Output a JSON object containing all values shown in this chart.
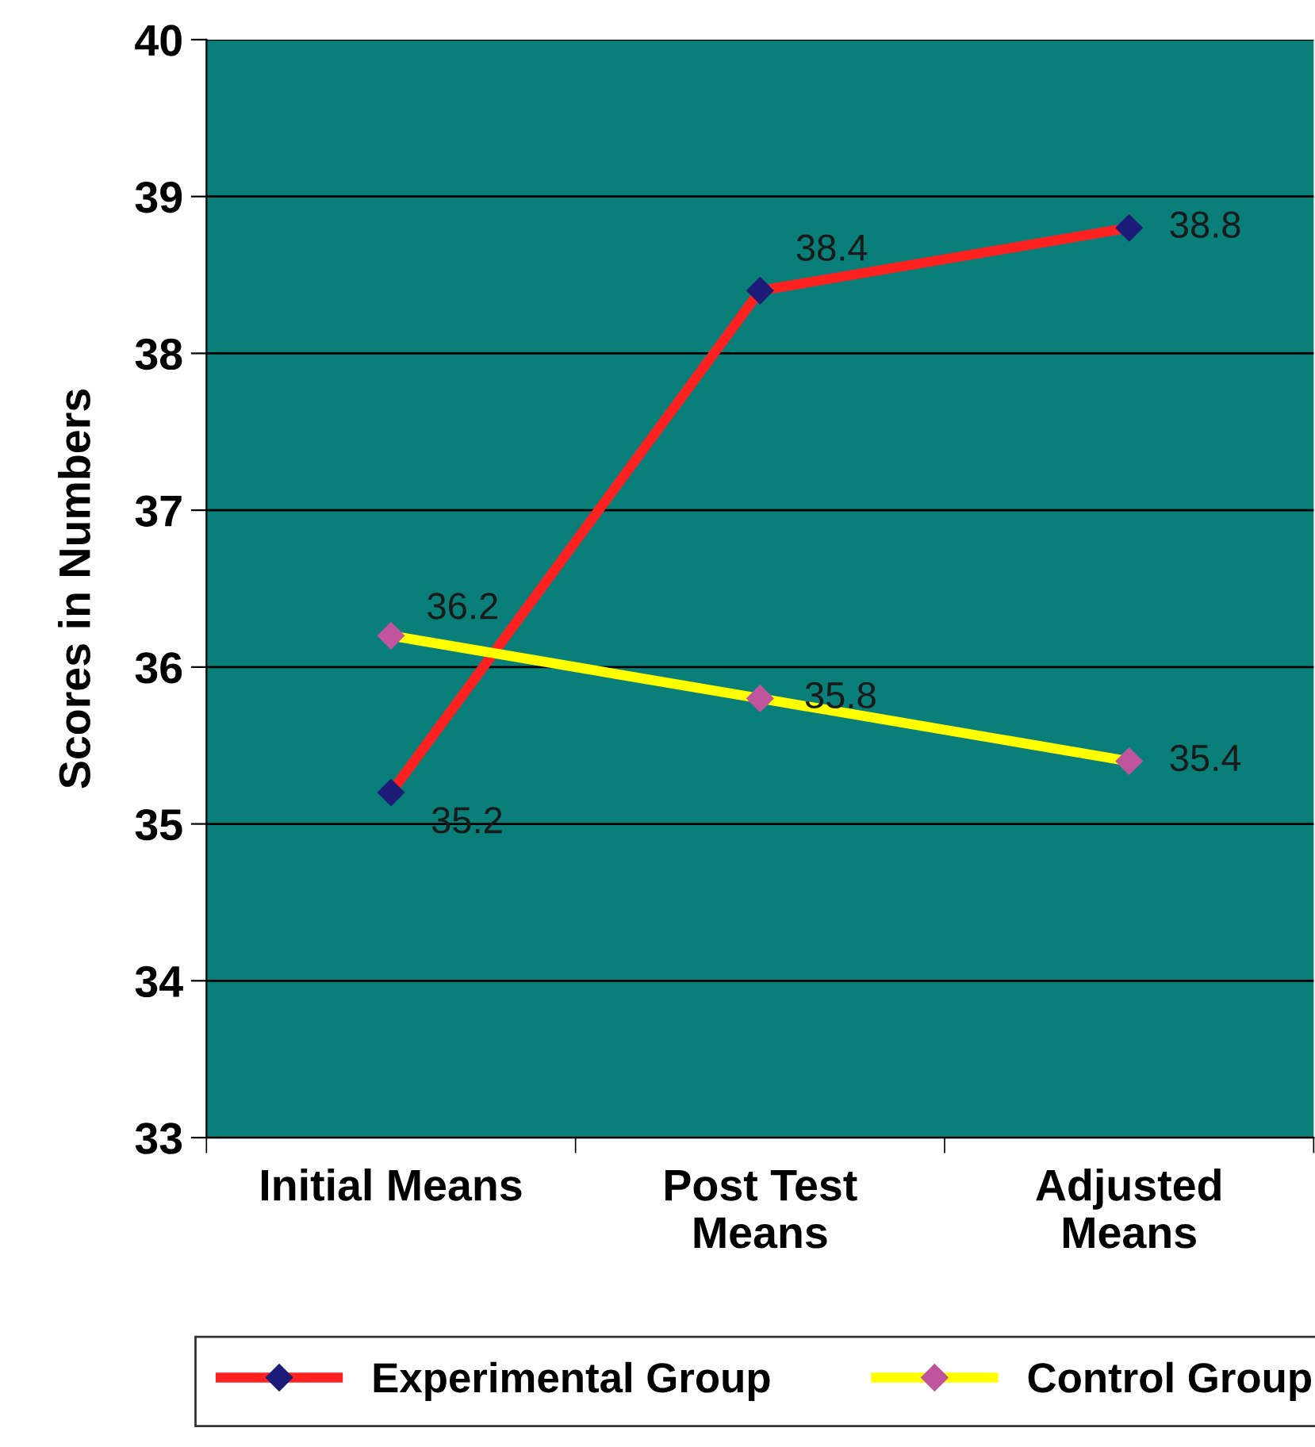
{
  "chart_data": {
    "type": "line",
    "ylabel": "Scores in Numbers",
    "categories": [
      "Initial Means",
      "Post Test\nMeans",
      "Adjusted\nMeans"
    ],
    "series": [
      {
        "name": "Experimental Group",
        "color": "#ff2020",
        "colors": [
          "#1c1c78",
          "#1c1c78",
          "#1c1c78"
        ],
        "values": [
          35.2,
          38.4,
          38.8
        ]
      },
      {
        "name": "Control Group",
        "color": "#ffff00",
        "colors": [
          "#c0559e",
          "#c0559e",
          "#c0559e"
        ],
        "values": [
          36.2,
          35.8,
          35.4
        ]
      }
    ],
    "ylim": [
      33,
      40
    ],
    "yticks": [
      33,
      34,
      35,
      36,
      37,
      38,
      39,
      40
    ],
    "grid": "y",
    "legend": "bottom",
    "marker": "diamond",
    "line_style": "solid",
    "data_labels": true
  }
}
